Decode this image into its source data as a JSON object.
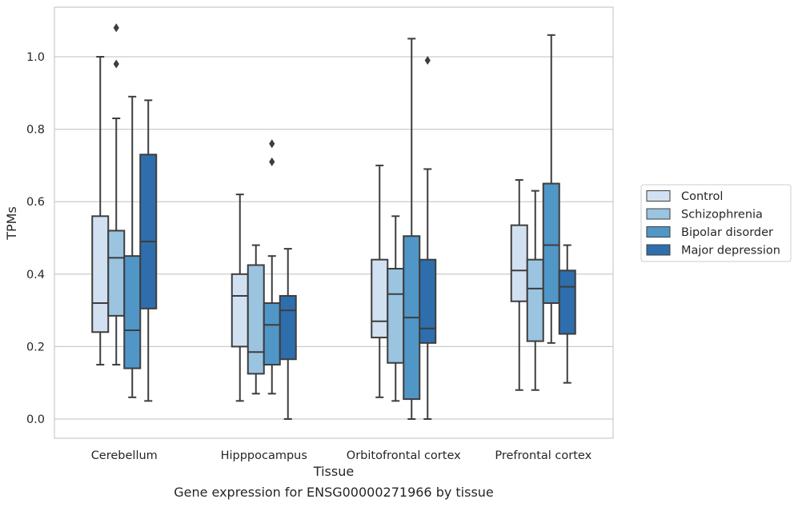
{
  "chart_data": {
    "type": "box",
    "title": "",
    "caption": "Gene expression for ENSG00000271966 by tissue",
    "xlabel": "Tissue",
    "ylabel": "TPMs",
    "ylim": [
      -0.05,
      1.13
    ],
    "yticks": [
      0.0,
      0.2,
      0.4,
      0.6,
      0.8,
      1.0
    ],
    "grid": true,
    "legend_position": "right, outside plot",
    "categories": [
      "Cerebellum",
      "Hipppocampus",
      "Orbitofrontal cortex",
      "Prefrontal cortex"
    ],
    "series": [
      {
        "name": "Control",
        "color": "#d1e1f1",
        "boxes": [
          {
            "whislo": 0.15,
            "q1": 0.24,
            "med": 0.32,
            "q3": 0.56,
            "whishi": 1.0,
            "fliers": []
          },
          {
            "whislo": 0.05,
            "q1": 0.2,
            "med": 0.34,
            "q3": 0.4,
            "whishi": 0.62,
            "fliers": []
          },
          {
            "whislo": 0.06,
            "q1": 0.225,
            "med": 0.27,
            "q3": 0.44,
            "whishi": 0.7,
            "fliers": []
          },
          {
            "whislo": 0.08,
            "q1": 0.325,
            "med": 0.41,
            "q3": 0.535,
            "whishi": 0.66,
            "fliers": []
          }
        ]
      },
      {
        "name": "Schizophrenia",
        "color": "#9ac4e0",
        "boxes": [
          {
            "whislo": 0.15,
            "q1": 0.285,
            "med": 0.445,
            "q3": 0.52,
            "whishi": 0.83,
            "fliers": [
              0.98,
              1.08
            ]
          },
          {
            "whislo": 0.07,
            "q1": 0.125,
            "med": 0.185,
            "q3": 0.425,
            "whishi": 0.48,
            "fliers": []
          },
          {
            "whislo": 0.05,
            "q1": 0.155,
            "med": 0.345,
            "q3": 0.415,
            "whishi": 0.56,
            "fliers": []
          },
          {
            "whislo": 0.08,
            "q1": 0.215,
            "med": 0.36,
            "q3": 0.44,
            "whishi": 0.63,
            "fliers": []
          }
        ]
      },
      {
        "name": "Bipolar disorder",
        "color": "#5096c6",
        "boxes": [
          {
            "whislo": 0.06,
            "q1": 0.14,
            "med": 0.245,
            "q3": 0.45,
            "whishi": 0.89,
            "fliers": []
          },
          {
            "whislo": 0.07,
            "q1": 0.15,
            "med": 0.26,
            "q3": 0.32,
            "whishi": 0.45,
            "fliers": [
              0.71,
              0.76
            ]
          },
          {
            "whislo": 0.0,
            "q1": 0.055,
            "med": 0.28,
            "q3": 0.505,
            "whishi": 1.05,
            "fliers": []
          },
          {
            "whislo": 0.21,
            "q1": 0.32,
            "med": 0.48,
            "q3": 0.65,
            "whishi": 1.06,
            "fliers": []
          }
        ]
      },
      {
        "name": "Major depression",
        "color": "#2f6ead",
        "boxes": [
          {
            "whislo": 0.05,
            "q1": 0.305,
            "med": 0.49,
            "q3": 0.73,
            "whishi": 0.88,
            "fliers": []
          },
          {
            "whislo": 0.0,
            "q1": 0.165,
            "med": 0.3,
            "q3": 0.34,
            "whishi": 0.47,
            "fliers": []
          },
          {
            "whislo": 0.0,
            "q1": 0.21,
            "med": 0.25,
            "q3": 0.44,
            "whishi": 0.69,
            "fliers": [
              0.99
            ]
          },
          {
            "whislo": 0.1,
            "q1": 0.235,
            "med": 0.365,
            "q3": 0.41,
            "whishi": 0.48,
            "fliers": []
          }
        ]
      }
    ]
  }
}
